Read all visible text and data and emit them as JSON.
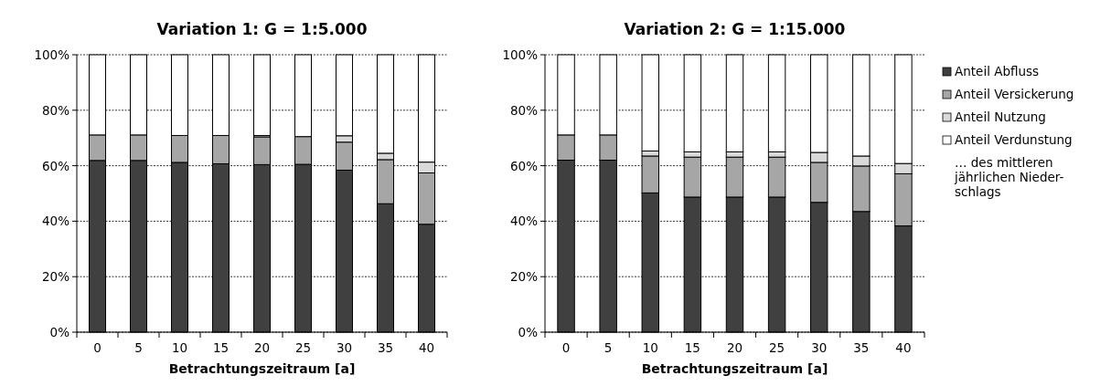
{
  "chart_data": [
    {
      "type": "bar",
      "title": "Variation 1: G = 1:5.000",
      "xlabel": "Betrachtungszeitraum [a]",
      "categories": [
        "0",
        "5",
        "10",
        "15",
        "20",
        "25",
        "30",
        "35",
        "40"
      ],
      "stacked": true,
      "ylim": [
        0,
        100
      ],
      "yticks": [
        {
          "value": 0,
          "label": "0%"
        },
        {
          "value": 20,
          "label": "20%"
        },
        {
          "value": 40,
          "label": "40%"
        },
        {
          "value": 60,
          "label": "60%"
        },
        {
          "value": 80,
          "label": "80%"
        },
        {
          "value": 100,
          "label": "100%"
        }
      ],
      "grid": "y",
      "legend": false,
      "series": [
        {
          "color": "#404040",
          "values": [
            61.9,
            61.9,
            61.2,
            60.7,
            60.4,
            60.5,
            58.4,
            46.3,
            38.9
          ]
        },
        {
          "color": "#a6a6a6",
          "values": [
            9.2,
            9.2,
            9.7,
            10.2,
            10.0,
            10.0,
            10.1,
            15.9,
            18.5
          ]
        },
        {
          "color": "#d9d9d9",
          "values": [
            0,
            0,
            0,
            0,
            0.5,
            null,
            2.3,
            2.3,
            3.9
          ]
        },
        {
          "color": "#ffffff",
          "values": [
            28.9,
            28.9,
            29.1,
            29.1,
            29.1,
            29.5,
            29.2,
            35.5,
            38.7
          ]
        }
      ]
    },
    {
      "type": "bar",
      "title": "Variation 2: G = 1:15.000",
      "xlabel": "Betrachtungszeitraum [a]",
      "categories": [
        "0",
        "5",
        "10",
        "15",
        "20",
        "25",
        "30",
        "35",
        "40"
      ],
      "stacked": true,
      "ylim": [
        0,
        100
      ],
      "yticks": [
        {
          "value": 0,
          "label": "0%"
        },
        {
          "value": 20,
          "label": "20%"
        },
        {
          "value": 40,
          "label": "40%"
        },
        {
          "value": 60,
          "label": "60%"
        },
        {
          "value": 80,
          "label": "80%"
        },
        {
          "value": 100,
          "label": "100%"
        }
      ],
      "grid": "y",
      "legend": "right",
      "annotations": [
        "… des mittleren\njährlichen Nieder-\nschlags"
      ],
      "series": [
        {
          "name": "Anteil Abfluss",
          "color": "#404040",
          "values": [
            62.0,
            62.0,
            50.2,
            48.7,
            48.7,
            48.7,
            46.8,
            43.5,
            38.3
          ]
        },
        {
          "name": "Anteil Versickerung",
          "color": "#a6a6a6",
          "values": [
            9.1,
            9.1,
            13.3,
            14.4,
            14.4,
            14.4,
            14.4,
            16.4,
            18.8
          ]
        },
        {
          "name": "Anteil Nutzung",
          "color": "#d9d9d9",
          "values": [
            0,
            0,
            1.8,
            1.9,
            1.9,
            1.9,
            3.6,
            3.6,
            3.7
          ]
        },
        {
          "name": "Anteil Verdunstung",
          "color": "#ffffff",
          "values": [
            28.9,
            28.9,
            34.7,
            35.0,
            35.0,
            35.0,
            35.2,
            36.5,
            39.2
          ]
        }
      ]
    }
  ]
}
